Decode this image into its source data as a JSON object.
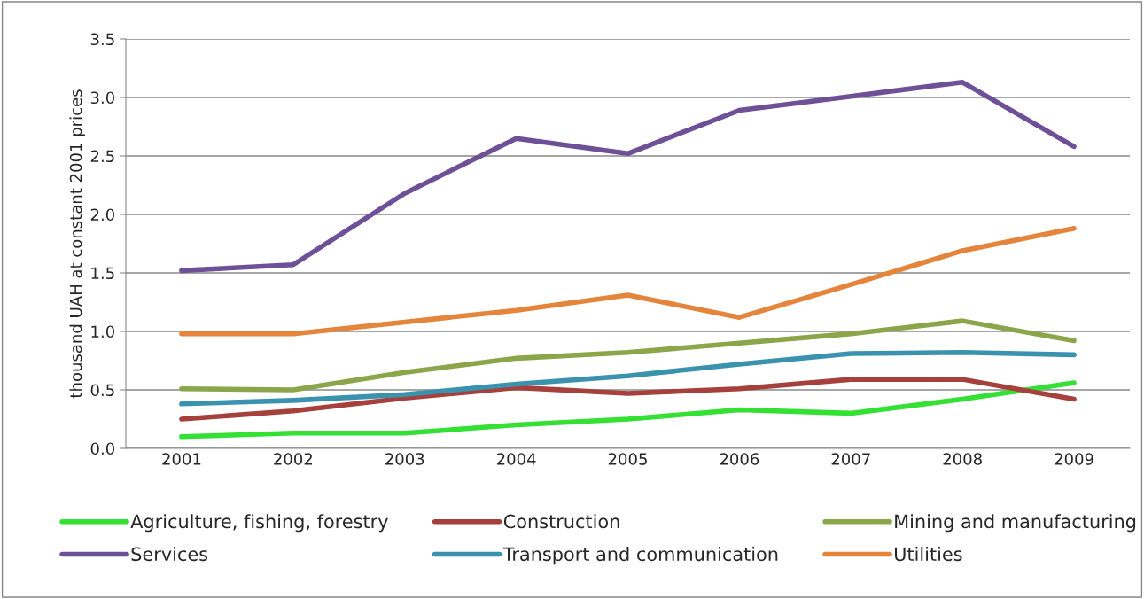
{
  "chart_data": {
    "type": "line",
    "ylabel": "thousand UAH at constant 2001 prices",
    "categories": [
      "2001",
      "2002",
      "2003",
      "2004",
      "2005",
      "2006",
      "2007",
      "2008",
      "2009"
    ],
    "ylim": [
      0,
      3.5
    ],
    "yticks": [
      {
        "value": 0,
        "label": "0.0"
      },
      {
        "value": 0.5,
        "label": "0.5"
      },
      {
        "value": 1,
        "label": "1.0"
      },
      {
        "value": 1.5,
        "label": "1.5"
      },
      {
        "value": 2,
        "label": "2.0"
      },
      {
        "value": 2.5,
        "label": "2.5"
      },
      {
        "value": 3,
        "label": "3.0"
      },
      {
        "value": 3.5,
        "label": "3.5"
      }
    ],
    "grid": "y",
    "legend": "bottom",
    "marker": "none",
    "line_style": "solid",
    "series": [
      {
        "name": "Agriculture, fishing, forestry",
        "color": "#33e033",
        "values": [
          0.1,
          0.13,
          0.13,
          0.2,
          0.25,
          0.33,
          0.3,
          0.42,
          0.56
        ]
      },
      {
        "name": "Construction",
        "color": "#a5403d",
        "values": [
          0.25,
          0.32,
          0.43,
          0.52,
          0.47,
          0.51,
          0.59,
          0.59,
          0.42
        ]
      },
      {
        "name": "Mining and manufacturing",
        "color": "#8aa54a",
        "values": [
          0.51,
          0.5,
          0.65,
          0.77,
          0.82,
          0.9,
          0.98,
          1.09,
          0.92
        ]
      },
      {
        "name": "Services",
        "color": "#6e5097",
        "values": [
          1.52,
          1.57,
          2.18,
          2.65,
          2.52,
          2.89,
          3.01,
          3.13,
          2.58
        ]
      },
      {
        "name": "Transport and communication",
        "color": "#3b92ae",
        "values": [
          0.38,
          0.41,
          0.46,
          0.55,
          0.62,
          0.72,
          0.81,
          0.82,
          0.8
        ]
      },
      {
        "name": "Utilities",
        "color": "#e5843b",
        "values": [
          0.98,
          0.98,
          1.08,
          1.18,
          1.31,
          1.12,
          1.4,
          1.69,
          1.88
        ]
      }
    ]
  }
}
